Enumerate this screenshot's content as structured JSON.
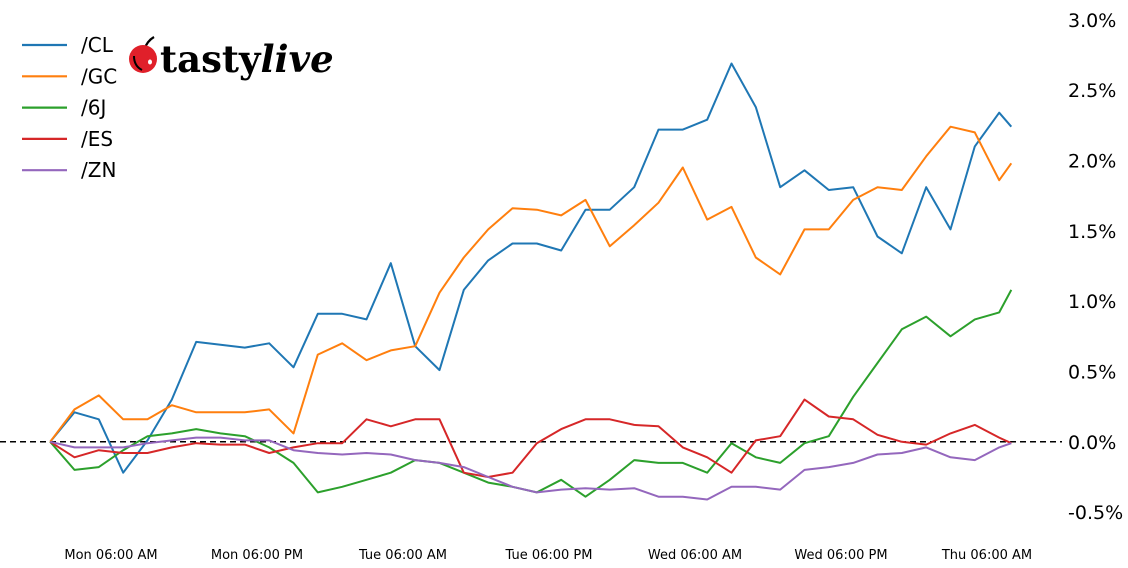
{
  "logo": {
    "brand": "tastylive",
    "part1": "tasty",
    "part2": "live",
    "cherry_color": "#e0202a"
  },
  "chart_data": {
    "type": "line",
    "title": "",
    "xlabel": "",
    "ylabel": "",
    "xlim": [
      "Sun 21:00",
      "Thu 12:00"
    ],
    "ylim": [
      -0.62,
      3.08
    ],
    "y_unit": "%",
    "y_axis_side": "right",
    "grid": false,
    "legend": "top-left",
    "reference_line": {
      "value": 0.0,
      "style": "dashed",
      "color": "#000000"
    },
    "x_ticks": [
      {
        "t": "Mon 06:00",
        "label": "Mon 06:00 AM"
      },
      {
        "t": "Mon 18:00",
        "label": "Mon 06:00 PM"
      },
      {
        "t": "Tue 06:00",
        "label": "Tue 06:00 AM"
      },
      {
        "t": "Tue 18:00",
        "label": "Tue 06:00 PM"
      },
      {
        "t": "Wed 06:00",
        "label": "Wed 06:00 AM"
      },
      {
        "t": "Wed 18:00",
        "label": "Wed 06:00 PM"
      },
      {
        "t": "Thu 06:00",
        "label": "Thu 06:00 AM"
      }
    ],
    "y_ticks": [
      {
        "v": 3.0,
        "label": "3.0%"
      },
      {
        "v": 2.5,
        "label": "2.5%"
      },
      {
        "v": 2.0,
        "label": "2.0%"
      },
      {
        "v": 1.5,
        "label": "1.5%"
      },
      {
        "v": 1.0,
        "label": "1.0%"
      },
      {
        "v": 0.5,
        "label": "0.5%"
      },
      {
        "v": 0.0,
        "label": "0.0%"
      },
      {
        "v": -0.5,
        "label": "-0.5%"
      }
    ],
    "x": [
      "Mon 01:00",
      "Mon 03:00",
      "Mon 05:00",
      "Mon 07:00",
      "Mon 09:00",
      "Mon 11:00",
      "Mon 13:00",
      "Mon 15:00",
      "Mon 17:00",
      "Mon 19:00",
      "Mon 21:00",
      "Mon 23:00",
      "Tue 01:00",
      "Tue 03:00",
      "Tue 05:00",
      "Tue 07:00",
      "Tue 09:00",
      "Tue 11:00",
      "Tue 13:00",
      "Tue 15:00",
      "Tue 17:00",
      "Tue 19:00",
      "Tue 21:00",
      "Tue 23:00",
      "Wed 01:00",
      "Wed 03:00",
      "Wed 05:00",
      "Wed 07:00",
      "Wed 09:00",
      "Wed 11:00",
      "Wed 13:00",
      "Wed 15:00",
      "Wed 17:00",
      "Wed 19:00",
      "Wed 21:00",
      "Wed 23:00",
      "Thu 01:00",
      "Thu 03:00",
      "Thu 05:00",
      "Thu 07:00",
      "Thu 08:00"
    ],
    "series": [
      {
        "name": "/CL",
        "color": "#1f77b4",
        "values": [
          0.0,
          0.21,
          0.16,
          -0.22,
          0.01,
          0.3,
          0.71,
          0.69,
          0.67,
          0.7,
          0.53,
          0.91,
          0.91,
          0.87,
          1.27,
          0.68,
          0.51,
          1.08,
          1.29,
          1.41,
          1.41,
          1.36,
          1.65,
          1.65,
          1.81,
          2.22,
          2.22,
          2.29,
          2.69,
          2.38,
          1.81,
          1.93,
          1.79,
          1.81,
          1.46,
          1.34,
          1.81,
          1.51,
          2.1,
          2.34,
          2.24
        ]
      },
      {
        "name": "/GC",
        "color": "#ff7f0e",
        "values": [
          0.0,
          0.23,
          0.33,
          0.16,
          0.16,
          0.26,
          0.21,
          0.21,
          0.21,
          0.23,
          0.06,
          0.62,
          0.7,
          0.58,
          0.65,
          0.68,
          1.06,
          1.31,
          1.51,
          1.66,
          1.65,
          1.61,
          1.72,
          1.39,
          1.54,
          1.7,
          1.95,
          1.58,
          1.67,
          1.31,
          1.19,
          1.51,
          1.51,
          1.72,
          1.81,
          1.79,
          2.03,
          2.24,
          2.2,
          1.86,
          1.98
        ]
      },
      {
        "name": "/6J",
        "color": "#2ca02c",
        "values": [
          0.0,
          -0.2,
          -0.18,
          -0.06,
          0.04,
          0.06,
          0.09,
          0.06,
          0.04,
          -0.04,
          -0.15,
          -0.36,
          -0.32,
          -0.27,
          -0.22,
          -0.13,
          -0.15,
          -0.22,
          -0.29,
          -0.32,
          -0.36,
          -0.27,
          -0.39,
          -0.27,
          -0.13,
          -0.15,
          -0.15,
          -0.22,
          -0.01,
          -0.11,
          -0.15,
          -0.01,
          0.04,
          0.32,
          0.56,
          0.8,
          0.89,
          0.75,
          0.87,
          0.92,
          1.08
        ]
      },
      {
        "name": "/ES",
        "color": "#d62728",
        "values": [
          0.0,
          -0.11,
          -0.06,
          -0.08,
          -0.08,
          -0.04,
          -0.01,
          -0.02,
          -0.02,
          -0.08,
          -0.04,
          -0.01,
          -0.01,
          0.16,
          0.11,
          0.16,
          0.16,
          -0.22,
          -0.25,
          -0.22,
          -0.01,
          0.09,
          0.16,
          0.16,
          0.12,
          0.11,
          -0.04,
          -0.11,
          -0.22,
          0.01,
          0.04,
          0.3,
          0.18,
          0.16,
          0.05,
          0.0,
          -0.02,
          0.06,
          0.12,
          0.03,
          -0.01
        ]
      },
      {
        "name": "/ZN",
        "color": "#9467bd",
        "values": [
          0.0,
          -0.04,
          -0.04,
          -0.04,
          -0.01,
          0.01,
          0.03,
          0.03,
          0.01,
          0.01,
          -0.06,
          -0.08,
          -0.09,
          -0.08,
          -0.09,
          -0.13,
          -0.15,
          -0.18,
          -0.25,
          -0.32,
          -0.36,
          -0.34,
          -0.33,
          -0.34,
          -0.33,
          -0.39,
          -0.39,
          -0.41,
          -0.32,
          -0.32,
          -0.34,
          -0.2,
          -0.18,
          -0.15,
          -0.09,
          -0.08,
          -0.04,
          -0.11,
          -0.13,
          -0.04,
          -0.01
        ]
      }
    ]
  }
}
